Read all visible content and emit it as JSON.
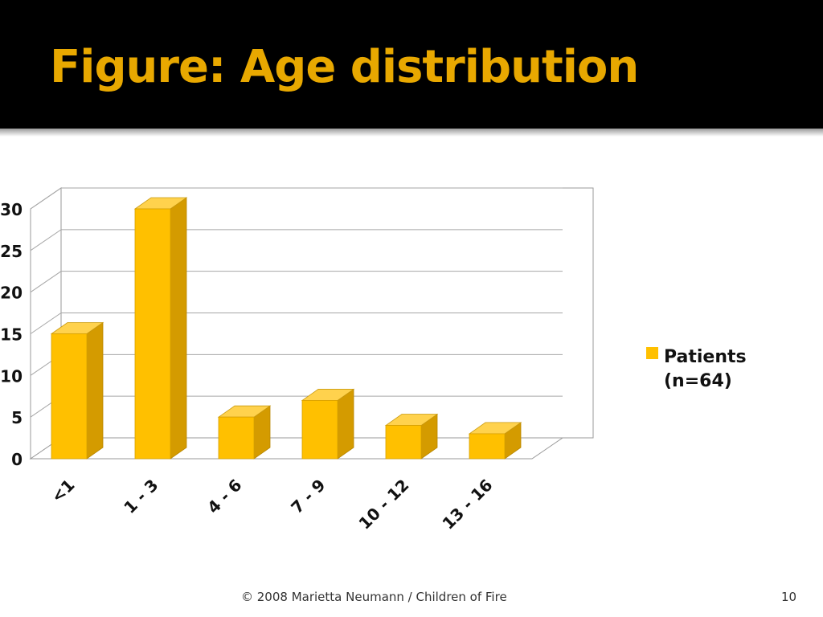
{
  "slide": {
    "title": "Figure: Age distribution",
    "footer": "© 2008 Marietta Neumann / Children of Fire",
    "page_number": "10"
  },
  "colors": {
    "title": "#e8a800",
    "bar_front": "#ffc000",
    "bar_side": "#d49b00",
    "bar_top": "#ffd24d",
    "header_bg": "#000000"
  },
  "chart_data": {
    "type": "bar",
    "style": "3d-column",
    "categories": [
      "<1",
      "1 - 3",
      "4 - 6",
      "7 - 9",
      "10 - 12",
      "13 - 16"
    ],
    "series": [
      {
        "name": "Patients (n=64)",
        "values": [
          15,
          30,
          5,
          7,
          4,
          3
        ]
      }
    ],
    "ylim": [
      0,
      30
    ],
    "yticks": [
      0,
      5,
      10,
      15,
      20,
      25,
      30
    ],
    "grid": true,
    "legend": {
      "position": "right",
      "label_lines": [
        "Patients",
        "(n=64)"
      ]
    }
  }
}
